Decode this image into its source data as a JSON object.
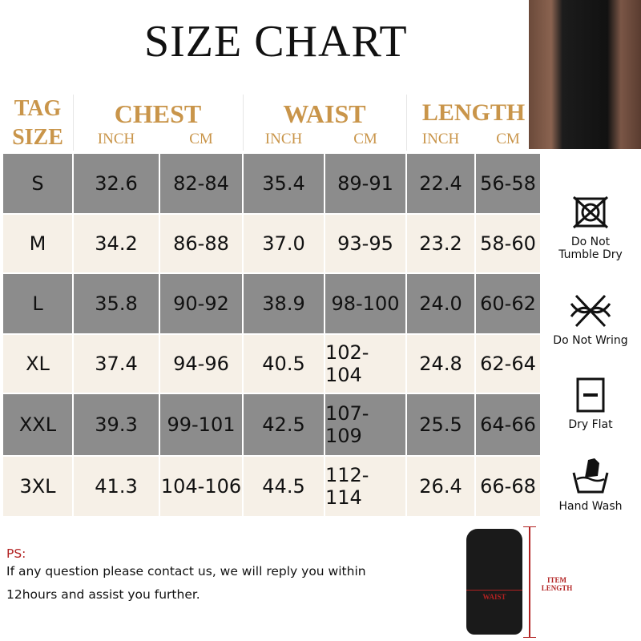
{
  "title": "SIZE CHART",
  "headers": {
    "tag_size": [
      "TAG",
      "SIZE"
    ],
    "groups": [
      "CHEST",
      "WAIST",
      "LENGTH"
    ],
    "units": [
      "INCH",
      "CM",
      "INCH",
      "CM",
      "INCH",
      "CM"
    ]
  },
  "rows": [
    [
      "S",
      "32.6",
      "82-84",
      "35.4",
      "89-91",
      "22.4",
      "56-58"
    ],
    [
      "M",
      "34.2",
      "86-88",
      "37.0",
      "93-95",
      "23.2",
      "58-60"
    ],
    [
      "L",
      "35.8",
      "90-92",
      "38.9",
      "98-100",
      "24.0",
      "60-62"
    ],
    [
      "XL",
      "37.4",
      "94-96",
      "40.5",
      "102-104",
      "24.8",
      "62-64"
    ],
    [
      "XXL",
      "39.3",
      "99-101",
      "42.5",
      "107-109",
      "25.5",
      "64-66"
    ],
    [
      "3XL",
      "41.3",
      "104-106",
      "44.5",
      "112-114",
      "26.4",
      "66-68"
    ]
  ],
  "care": [
    {
      "icon": "do-not-tumble-dry-icon",
      "label": "Do Not\nTumble Dry"
    },
    {
      "icon": "do-not-wring-icon",
      "label": "Do Not Wring"
    },
    {
      "icon": "dry-flat-icon",
      "label": "Dry Flat"
    },
    {
      "icon": "hand-wash-icon",
      "label": "Hand Wash"
    }
  ],
  "ps": {
    "label": "PS:",
    "line1": "If any question please contact us, we will reply you within",
    "line2": "12hours and assist you further."
  },
  "diagram": {
    "waist": "WAIST",
    "item_length": [
      "ITEM",
      "LENGTH"
    ]
  },
  "colors": {
    "header_gold": "#c9954a",
    "row_dark": "#8c8c8c",
    "row_light": "#f6f0e7",
    "ps_red": "#b22222"
  }
}
